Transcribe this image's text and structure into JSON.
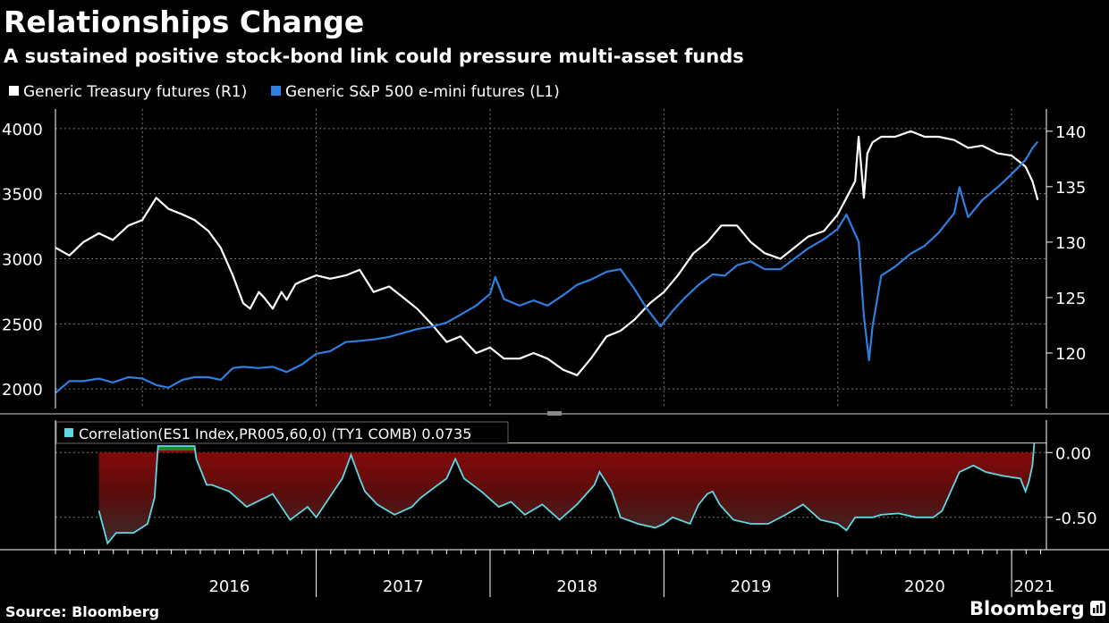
{
  "title": "Relationships Change",
  "subtitle": "A sustained positive stock-bond link could pressure multi-asset funds",
  "source": "Source: Bloomberg",
  "brand": "Bloomberg",
  "colors": {
    "background": "#000000",
    "treasury": "#ffffff",
    "sp500": "#2f7fe0",
    "correlation_line": "#5fd8e6",
    "fill_negative": "#8b0a0a",
    "fill_positive": "#1f8a2a",
    "grid": "#777777"
  },
  "chart_data": [
    {
      "type": "line",
      "title": "Relationships Change",
      "series": [
        {
          "name": "Generic Treasury futures (R1)",
          "axis": "right",
          "x": [
            2015.5,
            2015.58,
            2015.66,
            2015.75,
            2015.83,
            2015.92,
            2016.0,
            2016.08,
            2016.15,
            2016.23,
            2016.3,
            2016.38,
            2016.45,
            2016.52,
            2016.58,
            2016.62,
            2016.67,
            2016.7,
            2016.75,
            2016.8,
            2016.83,
            2016.88,
            2016.92,
            2017.0,
            2017.08,
            2017.17,
            2017.25,
            2017.33,
            2017.42,
            2017.5,
            2017.58,
            2017.67,
            2017.75,
            2017.83,
            2017.92,
            2018.0,
            2018.08,
            2018.17,
            2018.25,
            2018.33,
            2018.42,
            2018.5,
            2018.58,
            2018.67,
            2018.75,
            2018.83,
            2018.92,
            2019.0,
            2019.08,
            2019.17,
            2019.25,
            2019.33,
            2019.42,
            2019.5,
            2019.58,
            2019.67,
            2019.75,
            2019.83,
            2019.92,
            2020.0,
            2020.05,
            2020.1,
            2020.12,
            2020.15,
            2020.17,
            2020.2,
            2020.25,
            2020.33,
            2020.42,
            2020.5,
            2020.58,
            2020.67,
            2020.75,
            2020.83,
            2020.92,
            2021.0,
            2021.05,
            2021.08,
            2021.12,
            2021.15
          ],
          "y": [
            129.5,
            128.8,
            130.0,
            130.8,
            130.2,
            131.5,
            132.0,
            134.0,
            133.0,
            132.5,
            132.0,
            131.0,
            129.5,
            127.0,
            124.5,
            124.0,
            125.5,
            125.0,
            124.0,
            125.5,
            124.8,
            126.2,
            126.5,
            127.0,
            126.7,
            127.0,
            127.5,
            125.5,
            126.0,
            125.0,
            124.0,
            122.5,
            121.0,
            121.5,
            120.0,
            120.5,
            119.5,
            119.5,
            120.0,
            119.5,
            118.5,
            118.0,
            119.5,
            121.5,
            122.0,
            123.0,
            124.5,
            125.5,
            127.0,
            129.0,
            130.0,
            131.5,
            131.5,
            130.0,
            129.0,
            128.5,
            129.5,
            130.5,
            131.0,
            132.5,
            134.0,
            135.5,
            139.5,
            134.0,
            138.0,
            139.0,
            139.5,
            139.5,
            140.0,
            139.5,
            139.5,
            139.2,
            138.5,
            138.7,
            138.0,
            137.8,
            137.2,
            136.8,
            135.5,
            133.8
          ]
        },
        {
          "name": "Generic S&P 500 e-mini futures (L1)",
          "axis": "left",
          "x": [
            2015.5,
            2015.58,
            2015.66,
            2015.75,
            2015.83,
            2015.92,
            2016.0,
            2016.08,
            2016.15,
            2016.23,
            2016.3,
            2016.38,
            2016.45,
            2016.52,
            2016.58,
            2016.67,
            2016.75,
            2016.83,
            2016.92,
            2017.0,
            2017.08,
            2017.17,
            2017.25,
            2017.33,
            2017.42,
            2017.5,
            2017.58,
            2017.67,
            2017.75,
            2017.83,
            2017.92,
            2018.0,
            2018.03,
            2018.08,
            2018.17,
            2018.25,
            2018.33,
            2018.42,
            2018.5,
            2018.58,
            2018.67,
            2018.75,
            2018.83,
            2018.9,
            2018.98,
            2019.05,
            2019.12,
            2019.2,
            2019.28,
            2019.35,
            2019.42,
            2019.5,
            2019.58,
            2019.67,
            2019.75,
            2019.83,
            2019.92,
            2020.0,
            2020.05,
            2020.12,
            2020.15,
            2020.18,
            2020.2,
            2020.25,
            2020.33,
            2020.42,
            2020.5,
            2020.58,
            2020.67,
            2020.7,
            2020.75,
            2020.83,
            2020.92,
            2021.0,
            2021.08,
            2021.12,
            2021.15
          ],
          "y": [
            1970,
            2060,
            2060,
            2080,
            2050,
            2090,
            2080,
            2030,
            2010,
            2070,
            2090,
            2090,
            2070,
            2160,
            2170,
            2160,
            2170,
            2130,
            2190,
            2270,
            2290,
            2360,
            2370,
            2380,
            2400,
            2430,
            2460,
            2480,
            2510,
            2570,
            2640,
            2730,
            2860,
            2690,
            2640,
            2680,
            2640,
            2720,
            2800,
            2840,
            2900,
            2920,
            2770,
            2620,
            2480,
            2600,
            2700,
            2800,
            2880,
            2870,
            2950,
            2980,
            2920,
            2920,
            3000,
            3080,
            3150,
            3230,
            3340,
            3130,
            2560,
            2220,
            2480,
            2870,
            2940,
            3040,
            3100,
            3200,
            3350,
            3550,
            3320,
            3450,
            3550,
            3650,
            3760,
            3850,
            3900
          ]
        }
      ],
      "left_axis": {
        "ylim": [
          1850,
          4150
        ],
        "ticks": [
          2000,
          2500,
          3000,
          3500,
          4000
        ]
      },
      "right_axis": {
        "ylim": [
          115,
          142
        ],
        "ticks": [
          120,
          125,
          130,
          135,
          140
        ]
      },
      "xlim": [
        2015.5,
        2021.2
      ],
      "legend_position": "top-left"
    },
    {
      "type": "area",
      "title": "Correlation(ES1 Index,PR005,60,0) (TY1 COMB) 0.0735",
      "series": [
        {
          "name": "Correlation(ES1 Index,PR005,60,0) (TY1 COMB)",
          "x": [
            2015.75,
            2015.8,
            2015.85,
            2015.95,
            2016.03,
            2016.07,
            2016.09,
            2016.3,
            2016.31,
            2016.37,
            2016.4,
            2016.5,
            2016.6,
            2016.75,
            2016.85,
            2016.95,
            2017.0,
            2017.05,
            2017.1,
            2017.15,
            2017.2,
            2017.25,
            2017.28,
            2017.35,
            2017.45,
            2017.55,
            2017.6,
            2017.7,
            2017.75,
            2017.8,
            2017.85,
            2017.95,
            2018.05,
            2018.12,
            2018.2,
            2018.3,
            2018.4,
            2018.5,
            2018.6,
            2018.63,
            2018.7,
            2018.75,
            2018.85,
            2018.95,
            2019.0,
            2019.05,
            2019.15,
            2019.2,
            2019.25,
            2019.28,
            2019.32,
            2019.4,
            2019.5,
            2019.6,
            2019.7,
            2019.8,
            2019.9,
            2020.0,
            2020.05,
            2020.1,
            2020.2,
            2020.25,
            2020.35,
            2020.45,
            2020.55,
            2020.6,
            2020.65,
            2020.7,
            2020.78,
            2020.85,
            2020.95,
            2021.05,
            2021.08,
            2021.1,
            2021.12,
            2021.13
          ],
          "y": [
            -0.45,
            -0.7,
            -0.62,
            -0.62,
            -0.55,
            -0.35,
            0.05,
            0.05,
            -0.05,
            -0.25,
            -0.25,
            -0.3,
            -0.42,
            -0.32,
            -0.52,
            -0.42,
            -0.5,
            -0.4,
            -0.3,
            -0.2,
            -0.02,
            -0.2,
            -0.3,
            -0.4,
            -0.48,
            -0.42,
            -0.35,
            -0.25,
            -0.2,
            -0.05,
            -0.2,
            -0.3,
            -0.42,
            -0.38,
            -0.48,
            -0.4,
            -0.52,
            -0.4,
            -0.25,
            -0.15,
            -0.3,
            -0.5,
            -0.55,
            -0.58,
            -0.55,
            -0.5,
            -0.55,
            -0.4,
            -0.32,
            -0.3,
            -0.4,
            -0.52,
            -0.55,
            -0.55,
            -0.48,
            -0.4,
            -0.52,
            -0.55,
            -0.6,
            -0.5,
            -0.5,
            -0.48,
            -0.47,
            -0.5,
            -0.5,
            -0.45,
            -0.3,
            -0.15,
            -0.1,
            -0.15,
            -0.18,
            -0.2,
            -0.3,
            -0.22,
            -0.1,
            0.07
          ]
        }
      ],
      "ylim": [
        -0.75,
        0.25
      ],
      "ticks": [
        0.0,
        -0.5
      ],
      "tick_labels": [
        "0.00",
        "-0.50"
      ],
      "latest_value": 0.0735,
      "xlim": [
        2015.5,
        2021.2
      ]
    }
  ],
  "x_axis": {
    "labels": [
      {
        "text": "2016",
        "x": 2016.5
      },
      {
        "text": "2017",
        "x": 2017.5
      },
      {
        "text": "2018",
        "x": 2018.5
      },
      {
        "text": "2019",
        "x": 2019.5
      },
      {
        "text": "2020",
        "x": 2020.5
      },
      {
        "text": "2021",
        "x": 2021.13
      }
    ],
    "year_dividers": [
      2017.0,
      2018.0,
      2019.0,
      2020.0,
      2021.0
    ]
  }
}
